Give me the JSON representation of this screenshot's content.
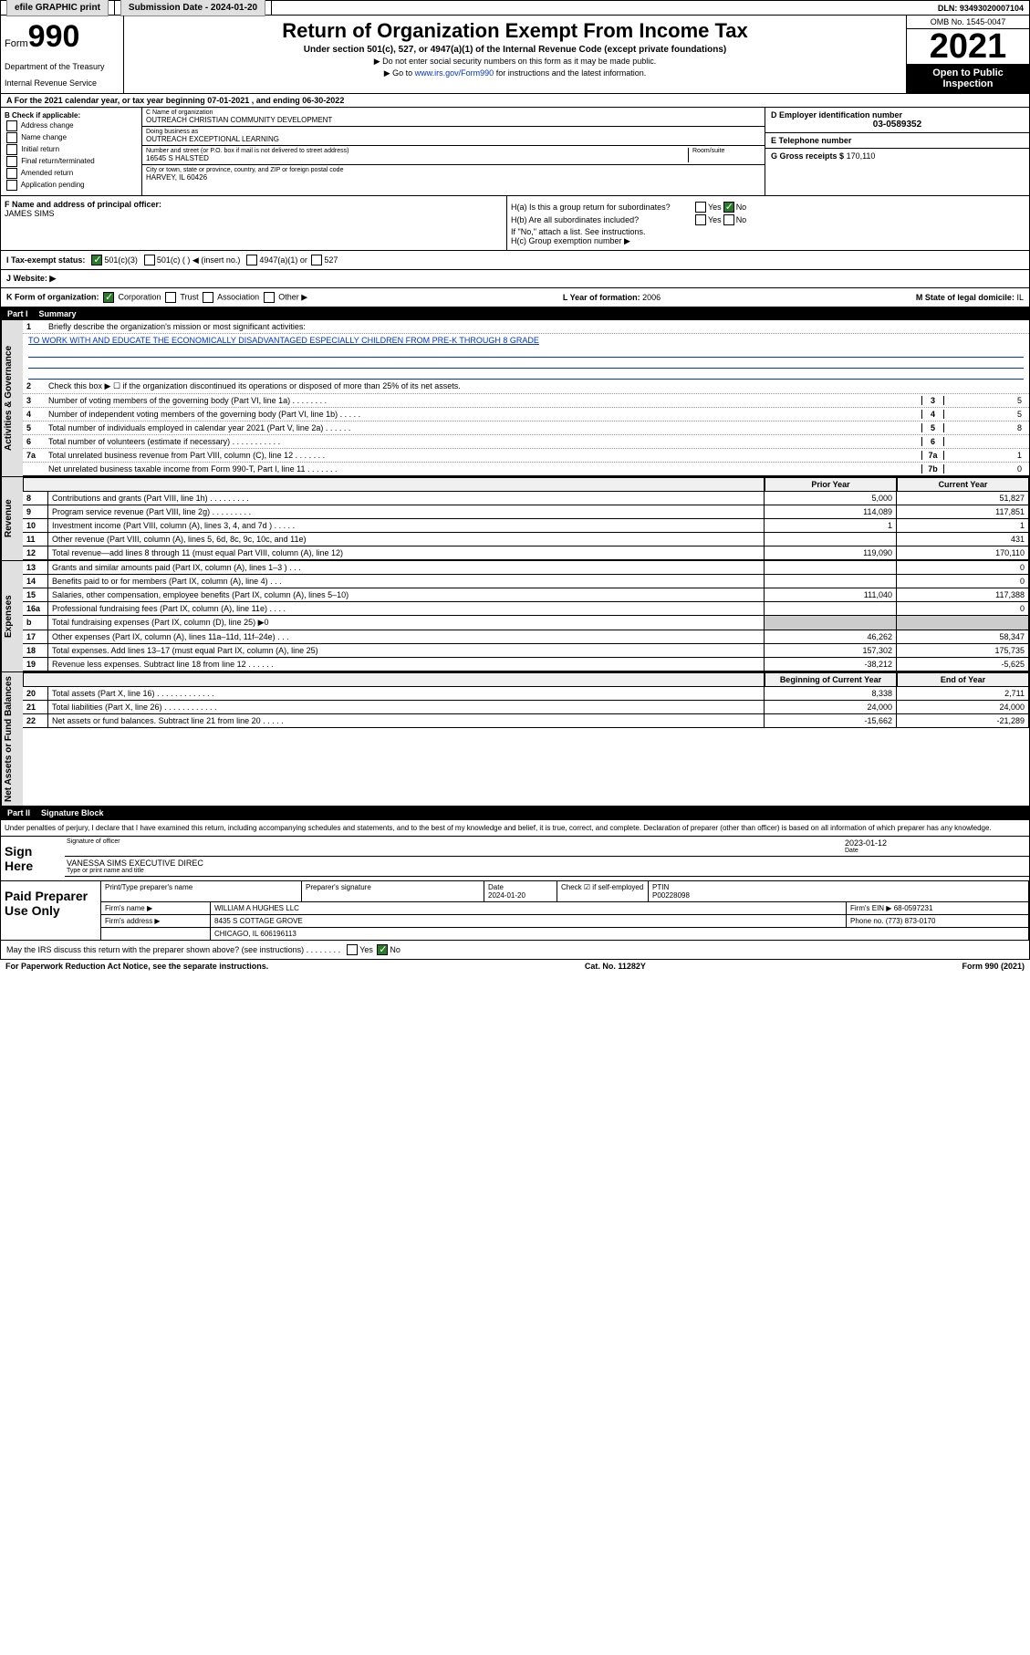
{
  "topbar": {
    "efile": "efile GRAPHIC print",
    "subdate_lbl": "Submission Date - 2024-01-20",
    "dln": "DLN: 93493020007104"
  },
  "header": {
    "form_word": "Form",
    "form_num": "990",
    "dept": "Department of the Treasury",
    "irs": "Internal Revenue Service",
    "title": "Return of Organization Exempt From Income Tax",
    "sub": "Under section 501(c), 527, or 4947(a)(1) of the Internal Revenue Code (except private foundations)",
    "note1": "▶ Do not enter social security numbers on this form as it may be made public.",
    "note2_pre": "▶ Go to ",
    "note2_link": "www.irs.gov/Form990",
    "note2_post": " for instructions and the latest information.",
    "omb": "OMB No. 1545-0047",
    "year": "2021",
    "open": "Open to Public Inspection"
  },
  "sectA": "A For the 2021 calendar year, or tax year beginning 07-01-2021  , and ending 06-30-2022",
  "boxB": {
    "hdr": "B Check if applicable:",
    "c1": "Address change",
    "c2": "Name change",
    "c3": "Initial return",
    "c4": "Final return/terminated",
    "c5": "Amended return",
    "c6": "Application pending"
  },
  "boxC": {
    "lbl": "C Name of organization",
    "name": "OUTREACH CHRISTIAN COMMUNITY DEVELOPMENT",
    "dba_lbl": "Doing business as",
    "dba": "OUTREACH EXCEPTIONAL LEARNING",
    "addr_lbl": "Number and street (or P.O. box if mail is not delivered to street address)",
    "addr": "16545 S HALSTED",
    "room_lbl": "Room/suite",
    "city_lbl": "City or town, state or province, country, and ZIP or foreign postal code",
    "city": "HARVEY, IL  60426"
  },
  "boxD": {
    "lbl": "D Employer identification number",
    "ein": "03-0589352"
  },
  "boxE": {
    "lbl": "E Telephone number"
  },
  "boxG": {
    "lbl": "G Gross receipts $",
    "val": "170,110"
  },
  "boxF": {
    "lbl": "F Name and address of principal officer:",
    "name": "JAMES SIMS"
  },
  "boxH": {
    "a": "H(a)  Is this a group return for subordinates?",
    "b": "H(b)  Are all subordinates included?",
    "bnote": "If \"No,\" attach a list. See instructions.",
    "c": "H(c)  Group exemption number ▶",
    "yes": "Yes",
    "no": "No"
  },
  "boxI": {
    "lbl": "I   Tax-exempt status:",
    "o1": "501(c)(3)",
    "o2": "501(c) (  ) ◀ (insert no.)",
    "o3": "4947(a)(1) or",
    "o4": "527"
  },
  "boxJ": {
    "lbl": "J   Website: ▶"
  },
  "boxK": {
    "lbl": "K Form of organization:",
    "o1": "Corporation",
    "o2": "Trust",
    "o3": "Association",
    "o4": "Other ▶"
  },
  "boxL": {
    "lbl": "L Year of formation:",
    "val": "2006"
  },
  "boxM": {
    "lbl": "M State of legal domicile:",
    "val": "IL"
  },
  "part1": {
    "num": "Part I",
    "title": "Summary"
  },
  "summary": {
    "l1": "Briefly describe the organization's mission or most significant activities:",
    "mission": "TO WORK WITH AND EDUCATE THE ECONOMICALLY DISADVANTAGED ESPECIALLY CHILDREN FROM PRE-K THROUGH 8 GRADE",
    "l2": "Check this box ▶ ☐  if the organization discontinued its operations or disposed of more than 25% of its net assets.",
    "l3": "Number of voting members of the governing body (Part VI, line 1a)  .    .    .    .    .    .    .    .",
    "l3v": "5",
    "l4": "Number of independent voting members of the governing body (Part VI, line 1b)  .    .    .    .    .",
    "l4v": "5",
    "l5": "Total number of individuals employed in calendar year 2021 (Part V, line 2a)  .    .    .    .    .    .",
    "l5v": "8",
    "l6": "Total number of volunteers (estimate if necessary)  .    .    .    .    .    .    .    .    .    .    .",
    "l6v": "",
    "l7a": "Total unrelated business revenue from Part VIII, column (C), line 12  .    .    .    .    .    .    .",
    "l7av": "1",
    "l7b": "Net unrelated business taxable income from Form 990-T, Part I, line 11  .    .    .    .    .    .    .",
    "l7bv": "0"
  },
  "vtabs": {
    "ag": "Activities & Governance",
    "rev": "Revenue",
    "exp": "Expenses",
    "na": "Net Assets or Fund Balances"
  },
  "cols": {
    "prior": "Prior Year",
    "curr": "Current Year",
    "begin": "Beginning of Current Year",
    "end": "End of Year"
  },
  "rev": [
    {
      "n": "8",
      "d": "Contributions and grants (Part VIII, line 1h)  .    .    .    .    .    .    .    .    .",
      "p": "5,000",
      "c": "51,827"
    },
    {
      "n": "9",
      "d": "Program service revenue (Part VIII, line 2g)  .    .    .    .    .    .    .    .    .",
      "p": "114,089",
      "c": "117,851"
    },
    {
      "n": "10",
      "d": "Investment income (Part VIII, column (A), lines 3, 4, and 7d )  .    .    .    .    .",
      "p": "1",
      "c": "1"
    },
    {
      "n": "11",
      "d": "Other revenue (Part VIII, column (A), lines 5, 6d, 8c, 9c, 10c, and 11e)",
      "p": "",
      "c": "431"
    },
    {
      "n": "12",
      "d": "Total revenue—add lines 8 through 11 (must equal Part VIII, column (A), line 12)",
      "p": "119,090",
      "c": "170,110"
    }
  ],
  "exp": [
    {
      "n": "13",
      "d": "Grants and similar amounts paid (Part IX, column (A), lines 1–3 )  .    .    .",
      "p": "",
      "c": "0"
    },
    {
      "n": "14",
      "d": "Benefits paid to or for members (Part IX, column (A), line 4)  .    .    .",
      "p": "",
      "c": "0"
    },
    {
      "n": "15",
      "d": "Salaries, other compensation, employee benefits (Part IX, column (A), lines 5–10)",
      "p": "111,040",
      "c": "117,388"
    },
    {
      "n": "16a",
      "d": "Professional fundraising fees (Part IX, column (A), line 11e)  .    .    .    .",
      "p": "",
      "c": "0"
    },
    {
      "n": "b",
      "d": "Total fundraising expenses (Part IX, column (D), line 25) ▶0",
      "p": "—",
      "c": "—"
    },
    {
      "n": "17",
      "d": "Other expenses (Part IX, column (A), lines 11a–11d, 11f–24e)  .    .    .",
      "p": "46,262",
      "c": "58,347"
    },
    {
      "n": "18",
      "d": "Total expenses. Add lines 13–17 (must equal Part IX, column (A), line 25)",
      "p": "157,302",
      "c": "175,735"
    },
    {
      "n": "19",
      "d": "Revenue less expenses. Subtract line 18 from line 12  .    .    .    .    .    .",
      "p": "-38,212",
      "c": "-5,625"
    }
  ],
  "na": [
    {
      "n": "20",
      "d": "Total assets (Part X, line 16)  .    .    .    .    .    .    .    .    .    .    .    .    .",
      "p": "8,338",
      "c": "2,711"
    },
    {
      "n": "21",
      "d": "Total liabilities (Part X, line 26)  .    .    .    .    .    .    .    .    .    .    .    .",
      "p": "24,000",
      "c": "24,000"
    },
    {
      "n": "22",
      "d": "Net assets or fund balances. Subtract line 21 from line 20  .    .    .    .    .",
      "p": "-15,662",
      "c": "-21,289"
    }
  ],
  "part2": {
    "num": "Part II",
    "title": "Signature Block"
  },
  "sig": {
    "decl": "Under penalties of perjury, I declare that I have examined this return, including accompanying schedules and statements, and to the best of my knowledge and belief, it is true, correct, and complete. Declaration of preparer (other than officer) is based on all information of which preparer has any knowledge.",
    "here": "Sign Here",
    "sig_lbl": "Signature of officer",
    "date_lbl": "Date",
    "date": "2023-01-12",
    "name": "VANESSA SIMS  EXECUTIVE DIREC",
    "name_lbl": "Type or print name and title"
  },
  "prep": {
    "lbl": "Paid Preparer Use Only",
    "h1": "Print/Type preparer's name",
    "h2": "Preparer's signature",
    "h3": "Date",
    "h4": "Check ☑ if self-employed",
    "h5": "PTIN",
    "date": "2024-01-20",
    "ptin": "P00228098",
    "firm_lbl": "Firm's name    ▶",
    "firm": "WILLIAM A HUGHES LLC",
    "ein_lbl": "Firm's EIN ▶",
    "ein": "68-0597231",
    "addr_lbl": "Firm's address ▶",
    "addr": "8435 S COTTAGE GROVE",
    "addr2": "CHICAGO, IL  606196113",
    "ph_lbl": "Phone no.",
    "ph": "(773) 873-0170"
  },
  "discuss": "May the IRS discuss this return with the preparer shown above? (see instructions)  .    .    .    .    .    .    .    .",
  "footer": {
    "l": "For Paperwork Reduction Act Notice, see the separate instructions.",
    "m": "Cat. No. 11282Y",
    "r": "Form 990 (2021)"
  }
}
